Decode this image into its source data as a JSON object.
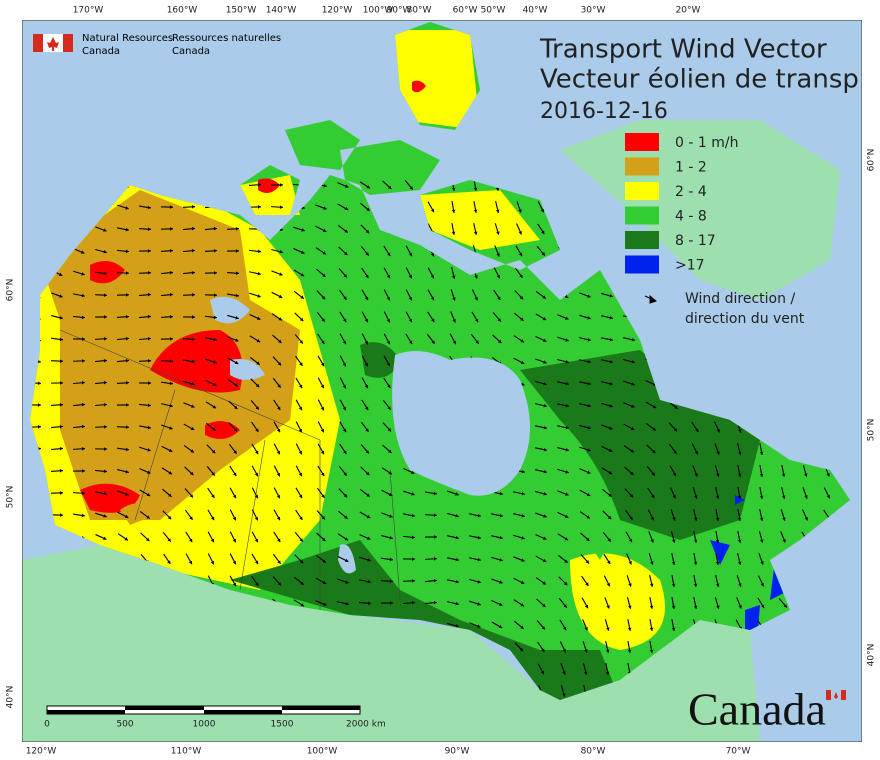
{
  "agency": {
    "english": [
      "Natural Resources",
      "Canada"
    ],
    "french": [
      "Ressources naturelles",
      "Canada"
    ]
  },
  "title": [
    "Transport Wind Vector",
    "Vecteur éolien de transp"
  ],
  "date": "2016-12-16",
  "legend": {
    "items": [
      {
        "label": "0 - 1 m/h",
        "color": "#ff0000"
      },
      {
        "label": "1 - 2",
        "color": "#d4a017"
      },
      {
        "label": "2 - 4",
        "color": "#ffff00"
      },
      {
        "label": "4 - 8",
        "color": "#33cc33"
      },
      {
        "label": "8 - 17",
        "color": "#1a7a1a"
      },
      {
        "label": ">17",
        "color": "#0022ee"
      }
    ],
    "arrow_label": [
      "Wind direction /",
      "direction du vent"
    ]
  },
  "graticule": {
    "top": [
      "170°W",
      "160°W",
      "150°W",
      "140°W",
      "120°W",
      "100°W",
      "90°W",
      "80°W",
      "60°W",
      "50°W",
      "40°W",
      "30°W",
      "20°W"
    ],
    "bottom": [
      "120°W",
      "110°W",
      "100°W",
      "90°W",
      "80°W",
      "70°W"
    ],
    "left": [
      "60°N",
      "50°N",
      "40°N"
    ],
    "right": [
      "60°N",
      "50°N",
      "40°N"
    ]
  },
  "scale_bar": {
    "labels": [
      "0",
      "500",
      "1000",
      "1500",
      "2000 km"
    ]
  },
  "wordmark": "Canada"
}
